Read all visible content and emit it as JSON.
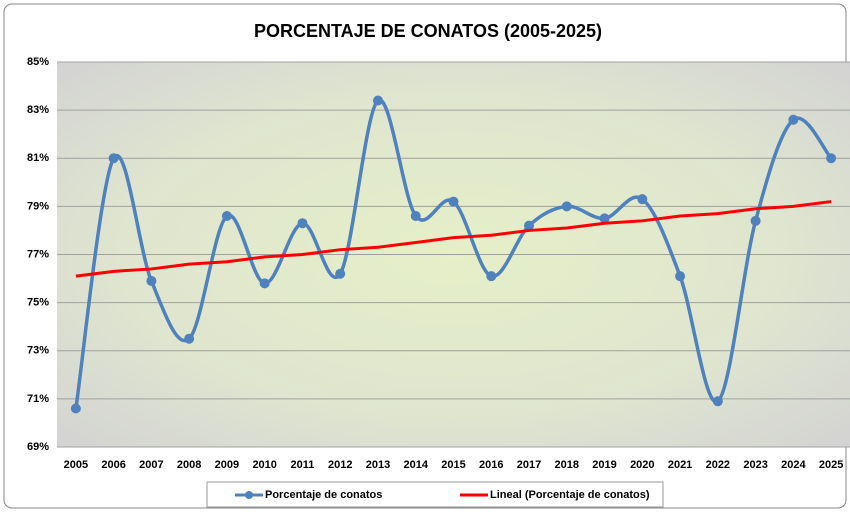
{
  "chart_data": {
    "type": "line",
    "title": "PORCENTAJE DE CONATOS (2005-2025)",
    "categories": [
      "2005",
      "2006",
      "2007",
      "2008",
      "2009",
      "2010",
      "2011",
      "2012",
      "2013",
      "2014",
      "2015",
      "2016",
      "2017",
      "2018",
      "2019",
      "2020",
      "2021",
      "2022",
      "2023",
      "2024",
      "2025"
    ],
    "series": [
      {
        "name": "Porcentaje de conatos",
        "color": "#4f81bd",
        "smooth": true,
        "markers": true,
        "values": [
          70.6,
          81.0,
          75.9,
          73.5,
          78.6,
          75.8,
          78.3,
          76.2,
          83.4,
          78.6,
          79.2,
          76.1,
          78.2,
          79.0,
          78.5,
          79.3,
          76.1,
          70.9,
          78.4,
          82.6,
          81.0
        ]
      },
      {
        "name": "Lineal (Porcentaje de conatos)",
        "color": "#ff0000",
        "smooth": false,
        "markers": false,
        "values": [
          76.1,
          76.3,
          76.4,
          76.6,
          76.7,
          76.9,
          77.0,
          77.2,
          77.3,
          77.5,
          77.7,
          77.8,
          78.0,
          78.1,
          78.3,
          78.4,
          78.6,
          78.7,
          78.9,
          79.0,
          79.2
        ]
      }
    ],
    "ylim": [
      69,
      85
    ],
    "yticks": [
      {
        "value": 69,
        "label": "69%"
      },
      {
        "value": 71,
        "label": "71%"
      },
      {
        "value": 73,
        "label": "73%"
      },
      {
        "value": 75,
        "label": "75%"
      },
      {
        "value": 77,
        "label": "77%"
      },
      {
        "value": 79,
        "label": "79%"
      },
      {
        "value": 81,
        "label": "81%"
      },
      {
        "value": 83,
        "label": "83%"
      },
      {
        "value": 85,
        "label": "85%"
      }
    ],
    "grid": true,
    "legend": "bottom"
  }
}
